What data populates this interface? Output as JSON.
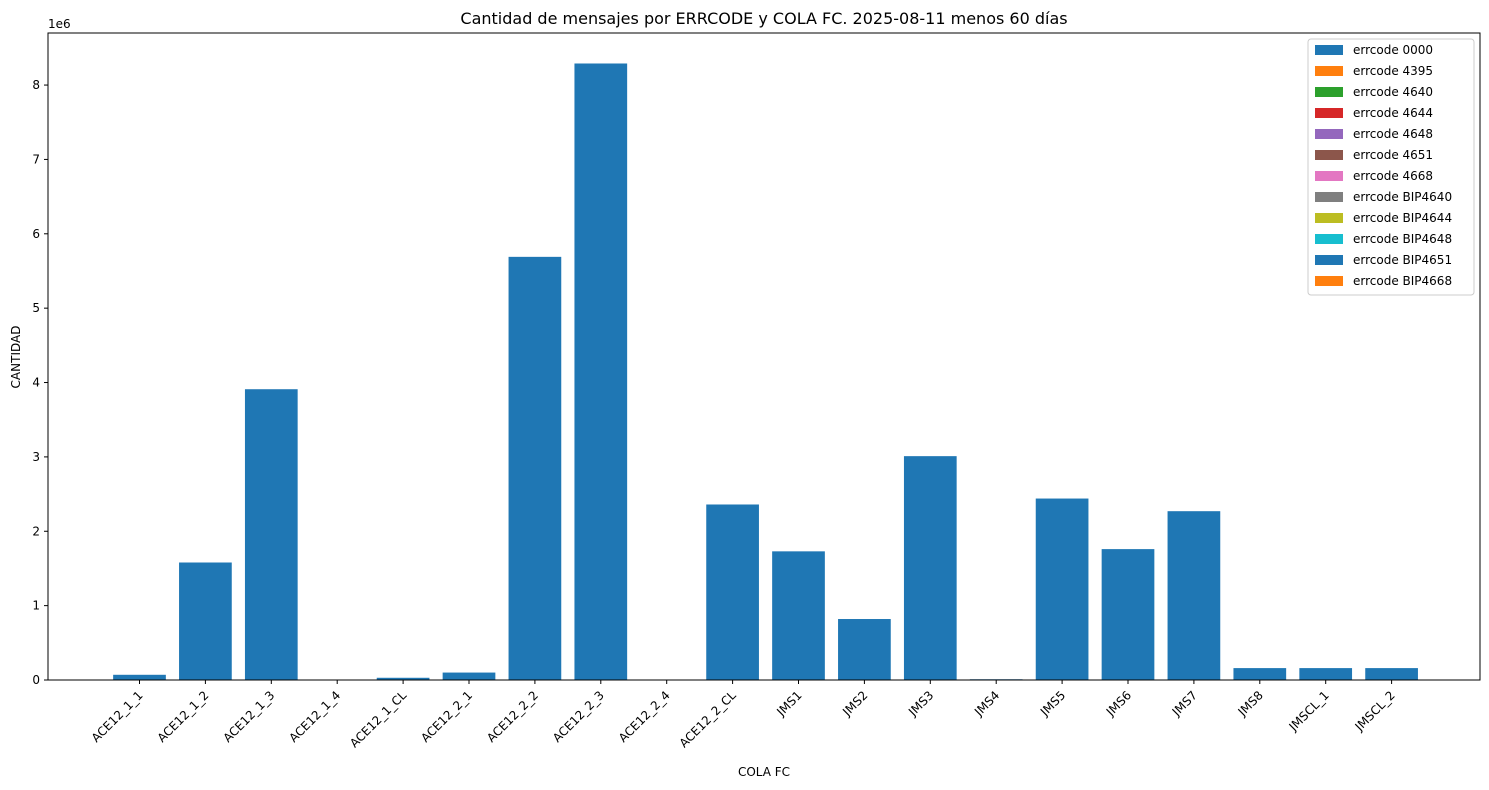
{
  "chart_data": {
    "type": "bar",
    "title": "Cantidad de mensajes por ERRCODE y COLA FC.  2025-08-11 menos 60 días",
    "xlabel": "COLA FC",
    "ylabel": "CANTIDAD",
    "y_offset_label": "1e6",
    "ylim": [
      0,
      8.7
    ],
    "y_unit_scale": 1000000,
    "yticks": [
      0,
      1,
      2,
      3,
      4,
      5,
      6,
      7,
      8
    ],
    "grid": false,
    "legend_position": "top-right",
    "categories": [
      "ACE12_1_1",
      "ACE12_1_2",
      "ACE12_1_3",
      "ACE12_1_4",
      "ACE12_1_CL",
      "ACE12_2_1",
      "ACE12_2_2",
      "ACE12_2_3",
      "ACE12_2_4",
      "ACE12_2_CL",
      "JMS1",
      "JMS2",
      "JMS3",
      "JMS4",
      "JMS5",
      "JMS6",
      "JMS7",
      "JMS8",
      "JMSCL_1",
      "JMSCL_2"
    ],
    "series": [
      {
        "name": "errcode 0000",
        "color": "#1f77b4",
        "values": [
          0.07,
          1.58,
          3.91,
          0.0,
          0.03,
          0.1,
          5.69,
          8.29,
          0.0,
          2.36,
          1.73,
          0.82,
          3.01,
          0.01,
          2.44,
          1.76,
          2.27,
          0.16,
          0.16,
          0.16
        ]
      },
      {
        "name": "errcode 4395",
        "color": "#ff7f0e",
        "values": [
          0,
          0,
          0,
          0,
          0,
          0,
          0,
          0,
          0,
          0,
          0,
          0,
          0,
          0,
          0,
          0,
          0,
          0,
          0,
          0
        ]
      },
      {
        "name": "errcode 4640",
        "color": "#2ca02c",
        "values": [
          0,
          0,
          0,
          0,
          0,
          0,
          0,
          0,
          0,
          0,
          0,
          0,
          0,
          0,
          0,
          0,
          0,
          0,
          0,
          0
        ]
      },
      {
        "name": "errcode 4644",
        "color": "#d62728",
        "values": [
          0,
          0,
          0,
          0,
          0,
          0,
          0,
          0,
          0,
          0,
          0,
          0,
          0,
          0,
          0,
          0,
          0,
          0,
          0,
          0
        ]
      },
      {
        "name": "errcode 4648",
        "color": "#9467bd",
        "values": [
          0,
          0,
          0,
          0,
          0,
          0,
          0,
          0,
          0,
          0,
          0,
          0,
          0,
          0,
          0,
          0,
          0,
          0,
          0,
          0
        ]
      },
      {
        "name": "errcode 4651",
        "color": "#8c564b",
        "values": [
          0,
          0,
          0,
          0,
          0,
          0,
          0,
          0,
          0,
          0,
          0,
          0,
          0,
          0,
          0,
          0,
          0,
          0,
          0,
          0
        ]
      },
      {
        "name": "errcode 4668",
        "color": "#e377c2",
        "values": [
          0,
          0,
          0,
          0,
          0,
          0,
          0,
          0,
          0,
          0,
          0,
          0,
          0,
          0,
          0,
          0,
          0,
          0,
          0,
          0
        ]
      },
      {
        "name": "errcode BIP4640",
        "color": "#7f7f7f",
        "values": [
          0,
          0,
          0,
          0,
          0,
          0,
          0,
          0,
          0,
          0,
          0,
          0,
          0,
          0,
          0,
          0,
          0,
          0,
          0,
          0
        ]
      },
      {
        "name": "errcode BIP4644",
        "color": "#bcbd22",
        "values": [
          0,
          0,
          0,
          0,
          0,
          0,
          0,
          0,
          0,
          0,
          0,
          0,
          0,
          0,
          0,
          0,
          0,
          0,
          0,
          0
        ]
      },
      {
        "name": "errcode BIP4648",
        "color": "#17becf",
        "values": [
          0,
          0,
          0,
          0,
          0,
          0,
          0,
          0,
          0,
          0,
          0,
          0,
          0,
          0,
          0,
          0,
          0,
          0,
          0,
          0
        ]
      },
      {
        "name": "errcode BIP4651",
        "color": "#1f77b4",
        "values": [
          0,
          0,
          0,
          0,
          0,
          0,
          0,
          0,
          0,
          0,
          0,
          0,
          0,
          0,
          0,
          0,
          0,
          0,
          0,
          0
        ]
      },
      {
        "name": "errcode BIP4668",
        "color": "#ff7f0e",
        "values": [
          0,
          0,
          0,
          0,
          0,
          0,
          0,
          0,
          0,
          0,
          0,
          0,
          0,
          0,
          0,
          0,
          0,
          0,
          0,
          0
        ]
      }
    ]
  }
}
